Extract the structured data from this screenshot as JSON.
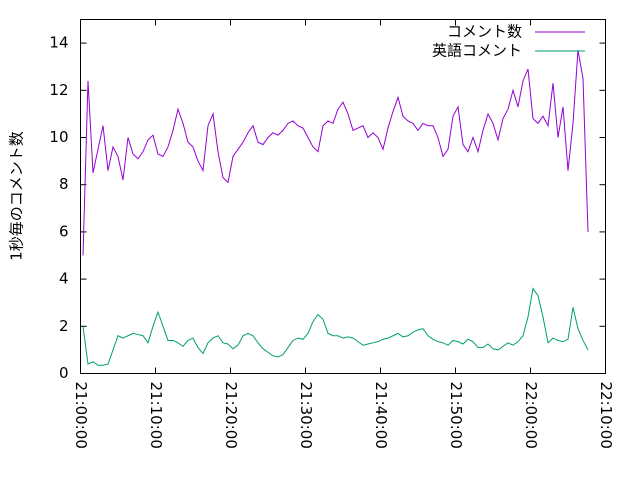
{
  "chart_data": {
    "type": "line",
    "ylabel": "1秒毎のコメント数",
    "x": [
      "21:00:20",
      "21:01:00",
      "21:01:40",
      "21:02:20",
      "21:03:00",
      "21:03:40",
      "21:04:20",
      "21:05:00",
      "21:05:40",
      "21:06:20",
      "21:07:00",
      "21:07:40",
      "21:08:20",
      "21:09:00",
      "21:09:40",
      "21:10:20",
      "21:11:00",
      "21:11:40",
      "21:12:20",
      "21:13:00",
      "21:13:40",
      "21:14:20",
      "21:15:00",
      "21:15:40",
      "21:16:20",
      "21:17:00",
      "21:17:40",
      "21:18:20",
      "21:19:00",
      "21:19:40",
      "21:20:20",
      "21:21:00",
      "21:21:40",
      "21:22:20",
      "21:23:00",
      "21:23:40",
      "21:24:20",
      "21:25:00",
      "21:25:40",
      "21:26:20",
      "21:27:00",
      "21:27:40",
      "21:28:20",
      "21:29:00",
      "21:29:40",
      "21:30:20",
      "21:31:00",
      "21:31:40",
      "21:32:20",
      "21:33:00",
      "21:33:40",
      "21:34:20",
      "21:35:00",
      "21:35:40",
      "21:36:20",
      "21:37:00",
      "21:37:40",
      "21:38:20",
      "21:39:00",
      "21:39:40",
      "21:40:20",
      "21:41:00",
      "21:41:40",
      "21:42:20",
      "21:43:00",
      "21:43:40",
      "21:44:20",
      "21:45:00",
      "21:45:40",
      "21:46:20",
      "21:47:00",
      "21:47:40",
      "21:48:20",
      "21:49:00",
      "21:49:40",
      "21:50:20",
      "21:51:00",
      "21:51:40",
      "21:52:20",
      "21:53:00",
      "21:53:40",
      "21:54:20",
      "21:55:00",
      "21:55:40",
      "21:56:20",
      "21:57:00",
      "21:57:40",
      "21:58:20",
      "21:59:00",
      "21:59:40",
      "22:00:20",
      "22:01:00",
      "22:01:40",
      "22:02:20",
      "22:03:00",
      "22:03:40",
      "22:04:20",
      "22:05:00",
      "22:05:40",
      "22:06:20",
      "22:07:00",
      "22:07:40"
    ],
    "series": [
      {
        "name": "コメント数",
        "color": "#9400d3",
        "values": [
          5.0,
          12.4,
          8.5,
          9.5,
          10.5,
          8.6,
          9.6,
          9.2,
          8.2,
          10.0,
          9.3,
          9.1,
          9.4,
          9.9,
          10.1,
          9.3,
          9.2,
          9.6,
          10.3,
          11.2,
          10.6,
          9.8,
          9.6,
          9.0,
          8.6,
          10.5,
          11.0,
          9.4,
          8.3,
          8.1,
          9.2,
          9.5,
          9.8,
          10.2,
          10.5,
          9.8,
          9.7,
          10.0,
          10.2,
          10.1,
          10.3,
          10.6,
          10.7,
          10.5,
          10.4,
          10.0,
          9.6,
          9.4,
          10.5,
          10.7,
          10.6,
          11.2,
          11.5,
          11.0,
          10.3,
          10.4,
          10.5,
          10.0,
          10.2,
          10.0,
          9.5,
          10.4,
          11.1,
          11.7,
          10.9,
          10.7,
          10.6,
          10.3,
          10.6,
          10.5,
          10.5,
          10.0,
          9.2,
          9.5,
          10.9,
          11.3,
          9.7,
          9.4,
          10.0,
          9.4,
          10.3,
          11.0,
          10.6,
          9.9,
          10.8,
          11.2,
          12.0,
          11.3,
          12.4,
          12.9,
          10.8,
          10.6,
          10.9,
          10.5,
          12.3,
          10.0,
          11.3,
          8.6,
          10.6,
          13.7,
          12.5,
          6.0
        ]
      },
      {
        "name": "英語コメント",
        "color": "#009e73",
        "values": [
          2.0,
          0.4,
          0.5,
          0.35,
          0.35,
          0.4,
          1.0,
          1.6,
          1.5,
          1.6,
          1.7,
          1.65,
          1.6,
          1.3,
          2.0,
          2.6,
          2.0,
          1.4,
          1.4,
          1.3,
          1.15,
          1.4,
          1.5,
          1.1,
          0.85,
          1.3,
          1.5,
          1.6,
          1.3,
          1.25,
          1.05,
          1.2,
          1.6,
          1.7,
          1.6,
          1.3,
          1.05,
          0.9,
          0.75,
          0.7,
          0.8,
          1.1,
          1.4,
          1.5,
          1.45,
          1.7,
          2.2,
          2.5,
          2.3,
          1.7,
          1.6,
          1.6,
          1.5,
          1.55,
          1.5,
          1.35,
          1.2,
          1.25,
          1.3,
          1.35,
          1.45,
          1.5,
          1.6,
          1.7,
          1.55,
          1.6,
          1.75,
          1.85,
          1.9,
          1.6,
          1.45,
          1.35,
          1.3,
          1.2,
          1.4,
          1.35,
          1.25,
          1.45,
          1.35,
          1.1,
          1.1,
          1.25,
          1.05,
          1.0,
          1.15,
          1.3,
          1.2,
          1.35,
          1.6,
          2.4,
          3.6,
          3.3,
          2.4,
          1.3,
          1.5,
          1.4,
          1.35,
          1.45,
          2.8,
          1.9,
          1.4,
          1.0
        ]
      }
    ],
    "xlim": [
      "21:00:00",
      "22:10:00"
    ],
    "xticks": [
      "21:00:00",
      "21:10:00",
      "21:20:00",
      "21:30:00",
      "21:40:00",
      "21:50:00",
      "22:00:00",
      "22:10:00"
    ],
    "ylim": [
      0,
      15
    ],
    "yticks": [
      0,
      2,
      4,
      6,
      8,
      10,
      12,
      14
    ],
    "grid": false,
    "legend": "top-right"
  }
}
